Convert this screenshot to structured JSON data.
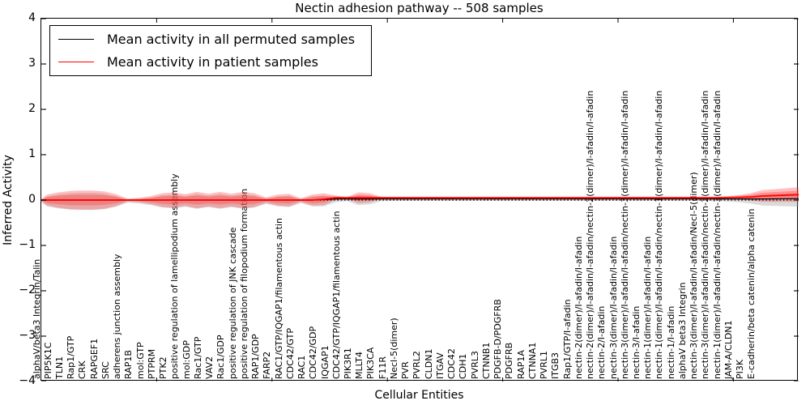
{
  "title": "Nectin adhesion pathway -- 508 samples",
  "axes": {
    "ylabel": "Inferred Activity",
    "xlabel": "Cellular Entities",
    "yticks": [
      "4",
      "3",
      "2",
      "1",
      "0",
      "−1",
      "−2",
      "−3",
      "−4"
    ]
  },
  "legend": [
    {
      "label": "Mean activity in all permuted samples",
      "color": "#000000"
    },
    {
      "label": "Mean activity in patient samples",
      "color": "#ff0000"
    }
  ],
  "chart_data": {
    "type": "area",
    "title": "Nectin adhesion pathway -- 508 samples",
    "xlabel": "Cellular Entities",
    "ylabel": "Inferred Activity",
    "ylim": [
      -4,
      4
    ],
    "zero_line_style": "dotted",
    "legend_position": "upper left",
    "band_fill_color": "#ff4444",
    "band_shadow_color": "#999999",
    "entities": [
      "alphaV/beta3 Integrin/Talin",
      "PIP5K1C",
      "TLN1",
      "Rap1/GTP",
      "CRK",
      "RAPGEF1",
      "SRC",
      "adherens junction assembly",
      "RAP1B",
      "mol:GTP",
      "PTPRM",
      "PTK2",
      "positive regulation of lamellipodium assembly",
      "mol:GDP",
      "Rac1/GTP",
      "VAV2",
      "Rac1/GDP",
      "positive regulation of JNK cascade",
      "positive regulation of filopodium formation",
      "RAP1/GDP",
      "FARP2",
      "RAC1/GTP/IQGAP1/filamentous actin",
      "CDC42/GTP",
      "RAC1",
      "CDC42/GDP",
      "IQGAP1",
      "CDC42/GTP/IQGAP1/filamentous actin",
      "PIK3R1",
      "MLLT4",
      "PIK3CA",
      "F11R",
      "Necl-5(dimer)",
      "PVR",
      "PVRL2",
      "CLDN1",
      "ITGAV",
      "CDC42",
      "CDH1",
      "PVRL3",
      "CTNNB1",
      "PDGFB-D/PDGFRB",
      "PDGFRB",
      "RAP1A",
      "CTNNA1",
      "PVRL1",
      "ITGB3",
      "Rap1/GTP/I-afadin",
      "nectin-2(dimer)/I-afadin/I-afadin",
      "nectin-2(dimer)/I-afadin/I-afadin/nectin-2(dimer)/I-afadin/I-afadin",
      "nectin-2/I-afadin",
      "nectin-3(dimer)/I-afadin/I-afadin",
      "nectin-3(dimer)/I-afadin/I-afadin/nectin-3(dimer)/I-afadin/I-afadin",
      "nectin-3/I-afadin",
      "nectin-1(dimer)/I-afadin/I-afadin",
      "nectin-1(dimer)/I-afadin/I-afadin/nectin-1(dimer)/I-afadin/I-afadin",
      "nectin-1/I-afadin",
      "alphaV beta3 Integrin",
      "nectin-3(dimer)/I-afadin/I-afadin/Necl-5(dimer)",
      "nectin-3(dimer)/I-afadin/I-afadin/nectin-2(dimer)/I-afadin/I-afadin",
      "nectin-1(dimer)/I-afadin/I-afadin/nectin-3(dimer)/I-afadin/I-afadin",
      "JAM-A/CLDN1",
      "PI3K",
      "E-cadherin/beta catenin/alpha catenin"
    ],
    "series": [
      {
        "name": "Mean activity in all permuted samples",
        "color": "#000000",
        "values": [
          0,
          0,
          0,
          0,
          0,
          0,
          0,
          0,
          0,
          0,
          0,
          0,
          0,
          0,
          0,
          0,
          0,
          0,
          0,
          0,
          0,
          0,
          0,
          0,
          0.01,
          0.025,
          0.025,
          0.025,
          0.025,
          0.025,
          0.025,
          0.025,
          0.025,
          0.025,
          0.025,
          0.025,
          0.025,
          0.025,
          0.025,
          0.025,
          0.025,
          0.025,
          0.025,
          0.025,
          0.025,
          0.025,
          0.025,
          0.025,
          0.025,
          0.025,
          0.025,
          0.025,
          0.025,
          0.025,
          0.025,
          0.025,
          0.025,
          0.025,
          0.025,
          0.025,
          0.025,
          0.025,
          0.025
        ]
      },
      {
        "name": "Mean activity in patient samples",
        "color": "#ff0000",
        "values": [
          0,
          0,
          0,
          0,
          0,
          0,
          0,
          0,
          0,
          0,
          0,
          0,
          0,
          0,
          0,
          0,
          0,
          0,
          0,
          0,
          0,
          0,
          0,
          0,
          0.02,
          0.05,
          0.05,
          0.05,
          0.05,
          0.05,
          0.05,
          0.05,
          0.05,
          0.05,
          0.05,
          0.05,
          0.05,
          0.05,
          0.05,
          0.05,
          0.05,
          0.05,
          0.05,
          0.05,
          0.05,
          0.05,
          0.05,
          0.05,
          0.05,
          0.05,
          0.05,
          0.05,
          0.05,
          0.05,
          0.05,
          0.05,
          0.05,
          0.05,
          0.05,
          0.055,
          0.06,
          0.07,
          0.09
        ]
      }
    ],
    "patient_band_halfwidth": [
      0.12,
      0.17,
      0.2,
      0.21,
      0.21,
      0.19,
      0.13,
      0.03,
      0.05,
      0.09,
      0.15,
      0.17,
      0.13,
      0.18,
      0.14,
      0.18,
      0.14,
      0.18,
      0.15,
      0.06,
      0.12,
      0.14,
      0.04,
      0.12,
      0.13,
      0.05,
      0.02,
      0.12,
      0.1,
      0.02,
      0.015,
      0.015,
      0.015,
      0.015,
      0.015,
      0.015,
      0.015,
      0.015,
      0.015,
      0.015,
      0.015,
      0.015,
      0.015,
      0.015,
      0.015,
      0.015,
      0.015,
      0.015,
      0.015,
      0.015,
      0.015,
      0.015,
      0.015,
      0.015,
      0.015,
      0.015,
      0.015,
      0.015,
      0.02,
      0.03,
      0.05,
      0.08,
      0.13
    ],
    "edges": {
      "left": {
        "halfwidth": 0.02,
        "patient_mean": 0.0,
        "permuted_mean": 0.0
      },
      "right": {
        "halfwidth": 0.16,
        "patient_mean": 0.12,
        "permuted_mean": 0.03
      }
    }
  }
}
